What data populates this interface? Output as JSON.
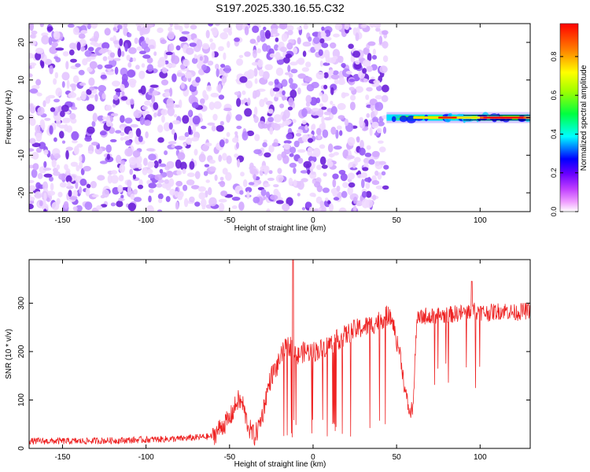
{
  "title": "S197.2025.330.16.55.C32",
  "colors": {
    "snr_line": "#ee2222",
    "noise_purple": "#6a1fd8",
    "frame": "#000000"
  },
  "chart_data": [
    {
      "type": "heatmap",
      "name": "spectrogram",
      "xlabel": "Height of straight line (km)",
      "ylabel": "Frequency (Hz)",
      "xlim": [
        -170,
        130
      ],
      "ylim": [
        -25,
        25
      ],
      "xticks": [
        -150,
        -100,
        -50,
        0,
        50,
        100
      ],
      "yticks": [
        -20,
        -10,
        0,
        10,
        20
      ],
      "noise_region_x": [
        -170,
        44
      ],
      "noise_gap_x": [
        -49,
        -47
      ],
      "signal_band": {
        "x": [
          44,
          130
        ],
        "center_freq_hz": 0,
        "halfwidth_hz": 1
      }
    },
    {
      "type": "colorbar",
      "name": "amplitude-colorbar",
      "label": "Normalized spectral amplitude",
      "range": [
        0,
        0.97
      ],
      "ticks": [
        0.0,
        0.2,
        0.4,
        0.6,
        0.8
      ],
      "tick_labels": [
        "0.0",
        "0.2",
        "0.4",
        "0.6",
        "0.8"
      ],
      "colormap": [
        "#ffffff",
        "#e040ff",
        "#8000ff",
        "#0000ff",
        "#00ffff",
        "#00ff00",
        "#ffff00",
        "#ff8000",
        "#ff0000"
      ]
    },
    {
      "type": "line",
      "name": "snr",
      "xlabel": "Height of straight line (km)",
      "ylabel": "SNR (10 * v/v)",
      "xlim": [
        -170,
        130
      ],
      "ylim": [
        0,
        390
      ],
      "xticks": [
        -150,
        -100,
        -50,
        0,
        50,
        100
      ],
      "yticks": [
        0,
        100,
        200,
        300
      ],
      "series": [
        {
          "name": "SNR",
          "x": [
            -170,
            -140,
            -110,
            -80,
            -60,
            -55,
            -50,
            -45,
            -42,
            -40,
            -38,
            -35,
            -33,
            -30,
            -28,
            -25,
            -22,
            -20,
            -18,
            -15,
            -12,
            -10,
            -8,
            -5,
            0,
            5,
            10,
            15,
            20,
            25,
            30,
            35,
            40,
            45,
            48,
            50,
            52,
            55,
            58,
            60,
            62,
            65,
            68,
            70,
            75,
            80,
            85,
            90,
            95,
            100,
            105,
            110,
            115,
            120,
            125,
            130
          ],
          "y": [
            15,
            15,
            17,
            20,
            25,
            45,
            60,
            100,
            90,
            60,
            40,
            25,
            40,
            75,
            110,
            150,
            165,
            180,
            200,
            210,
            215,
            185,
            195,
            200,
            200,
            205,
            215,
            225,
            235,
            245,
            250,
            255,
            265,
            275,
            260,
            220,
            200,
            120,
            70,
            90,
            265,
            270,
            275,
            270,
            275,
            275,
            278,
            280,
            285,
            282,
            280,
            283,
            285,
            280,
            283,
            285
          ],
          "spikes": [
            {
              "x": -12,
              "y": 390
            },
            {
              "x": 95,
              "y": 345
            }
          ]
        }
      ]
    }
  ]
}
